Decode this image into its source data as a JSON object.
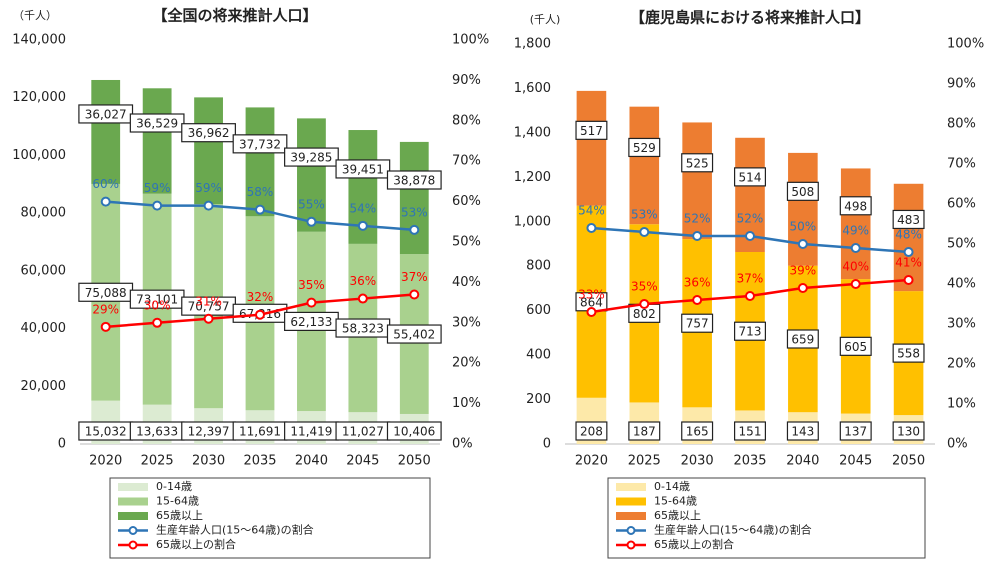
{
  "chart_data": [
    {
      "type": "bar",
      "title": "【全国の将来推計人口】",
      "unit_label": "（千人）",
      "categories": [
        "2020",
        "2025",
        "2030",
        "2035",
        "2040",
        "2045",
        "2050"
      ],
      "ylim": [
        0,
        140000
      ],
      "yticks": [
        0,
        {
          "value": 20000,
          "label": "20,000"
        },
        {
          "value": 40000,
          "label": "40,000"
        },
        {
          "value": 60000,
          "label": "60,000"
        },
        {
          "value": 80000,
          "label": "80,000"
        },
        {
          "value": 100000,
          "label": "100,000"
        },
        {
          "value": 120000,
          "label": "120,000"
        },
        {
          "value": 140000,
          "label": "140,000"
        }
      ],
      "y2lim": [
        0,
        100
      ],
      "y2ticks": [
        {
          "value": 0,
          "label": "0%"
        },
        {
          "value": 10,
          "label": "10%"
        },
        {
          "value": 20,
          "label": "20%"
        },
        {
          "value": 30,
          "label": "30%"
        },
        {
          "value": 40,
          "label": "40%"
        },
        {
          "value": 50,
          "label": "50%"
        },
        {
          "value": 60,
          "label": "60%"
        },
        {
          "value": 70,
          "label": "70%"
        },
        {
          "value": 80,
          "label": "80%"
        },
        {
          "value": 90,
          "label": "90%"
        },
        {
          "value": 100,
          "label": "100%"
        }
      ],
      "series": [
        {
          "name": "0-14歳",
          "type": "bar",
          "color": "#dcebd2",
          "values": [
            15032,
            13633,
            12397,
            11691,
            11419,
            11027,
            10406
          ],
          "value_labels": [
            "15,032",
            "13,633",
            "12,397",
            "11,691",
            "11,419",
            "11,027",
            "10,406"
          ]
        },
        {
          "name": "15-64歳",
          "type": "bar",
          "color": "#a9d18e",
          "values": [
            75088,
            73101,
            70757,
            67216,
            62133,
            58323,
            55402
          ],
          "value_labels": [
            "75,088",
            "73,101",
            "70,757",
            "67,216",
            "62,133",
            "58,323",
            "55,402"
          ]
        },
        {
          "name": "65歳以上",
          "type": "bar",
          "color": "#6aa84f",
          "values": [
            36027,
            36529,
            36962,
            37732,
            39285,
            39451,
            38878
          ],
          "value_labels": [
            "36,027",
            "36,529",
            "36,962",
            "37,732",
            "39,285",
            "39,451",
            "38,878"
          ]
        },
        {
          "name": "生産年齢人口(15～64歳)の割合",
          "type": "line",
          "axis": "y2",
          "color": "#2e75b6",
          "values": [
            60,
            59,
            59,
            58,
            55,
            54,
            53
          ],
          "value_labels": [
            "60%",
            "59%",
            "59%",
            "58%",
            "55%",
            "54%",
            "53%"
          ]
        },
        {
          "name": "65歳以上の割合",
          "type": "line",
          "axis": "y2",
          "color": "#ff0000",
          "values": [
            29,
            30,
            31,
            32,
            35,
            36,
            37
          ],
          "value_labels": [
            "29%",
            "30%",
            "31%",
            "32%",
            "35%",
            "36%",
            "37%"
          ]
        }
      ]
    },
    {
      "type": "bar",
      "title": "【鹿児島県における将来推計人口】",
      "unit_label": "(千人)",
      "categories": [
        "2020",
        "2025",
        "2030",
        "2035",
        "2040",
        "2045",
        "2050"
      ],
      "ylim": [
        0,
        1800
      ],
      "yticks": [
        0,
        200,
        400,
        600,
        800,
        {
          "value": 1000,
          "label": "1,000"
        },
        {
          "value": 1200,
          "label": "1,200"
        },
        {
          "value": 1400,
          "label": "1,400"
        },
        {
          "value": 1600,
          "label": "1,600"
        },
        {
          "value": 1800,
          "label": "1,800"
        }
      ],
      "y2lim": [
        0,
        100
      ],
      "y2ticks": [
        {
          "value": 0,
          "label": "0%"
        },
        {
          "value": 10,
          "label": "10%"
        },
        {
          "value": 20,
          "label": "20%"
        },
        {
          "value": 30,
          "label": "30%"
        },
        {
          "value": 40,
          "label": "40%"
        },
        {
          "value": 50,
          "label": "50%"
        },
        {
          "value": 60,
          "label": "60%"
        },
        {
          "value": 70,
          "label": "70%"
        },
        {
          "value": 80,
          "label": "80%"
        },
        {
          "value": 90,
          "label": "90%"
        },
        {
          "value": 100,
          "label": "100%"
        }
      ],
      "series": [
        {
          "name": "0-14歳",
          "type": "bar",
          "color": "#fde9a9",
          "values": [
            208,
            187,
            165,
            151,
            143,
            137,
            130
          ]
        },
        {
          "name": "15-64歳",
          "type": "bar",
          "color": "#ffc000",
          "values": [
            864,
            802,
            757,
            713,
            659,
            605,
            558
          ]
        },
        {
          "name": "65歳以上",
          "type": "bar",
          "color": "#ed7d31",
          "values": [
            517,
            529,
            525,
            514,
            508,
            498,
            483
          ]
        },
        {
          "name": "生産年齢人口(15～64歳)の割合",
          "type": "line",
          "axis": "y2",
          "color": "#2e75b6",
          "values": [
            54,
            53,
            52,
            52,
            50,
            49,
            48
          ],
          "value_labels": [
            "54%",
            "53%",
            "52%",
            "52%",
            "50%",
            "49%",
            "48%"
          ]
        },
        {
          "name": "65歳以上の割合",
          "type": "line",
          "axis": "y2",
          "color": "#ff0000",
          "values": [
            33,
            35,
            36,
            37,
            39,
            40,
            41
          ],
          "value_labels": [
            "33%",
            "35%",
            "36%",
            "37%",
            "39%",
            "40%",
            "41%"
          ]
        }
      ]
    }
  ]
}
